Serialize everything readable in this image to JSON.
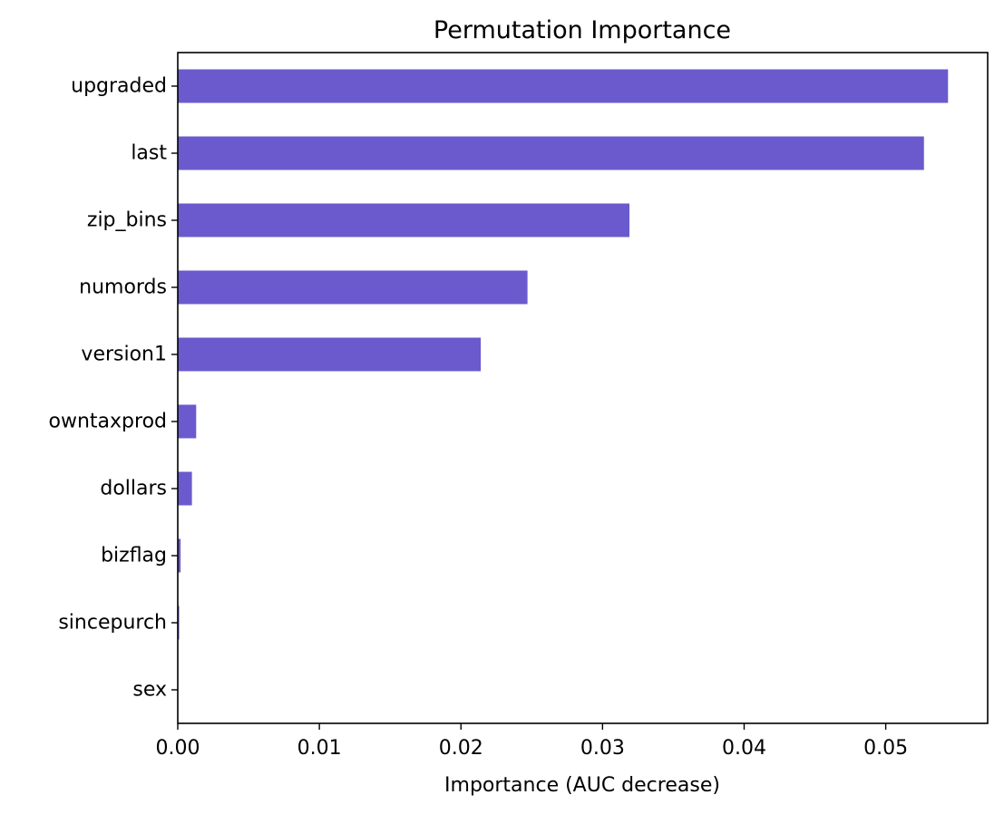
{
  "chart_data": {
    "type": "bar",
    "orientation": "horizontal",
    "title": "Permutation Importance",
    "xlabel": "Importance (AUC decrease)",
    "ylabel": "",
    "categories": [
      "upgraded",
      "last",
      "zip_bins",
      "numords",
      "version1",
      "owntaxprod",
      "dollars",
      "bizflag",
      "sincepurch",
      "sex"
    ],
    "values": [
      0.0544,
      0.0527,
      0.0319,
      0.0247,
      0.0214,
      0.0013,
      0.001,
      0.0002,
      0.0001,
      0.0
    ],
    "xlim": [
      0,
      0.0572
    ],
    "xticks": [
      0.0,
      0.01,
      0.02,
      0.03,
      0.04,
      0.05
    ],
    "xtick_labels": [
      "0.00",
      "0.01",
      "0.02",
      "0.03",
      "0.04",
      "0.05"
    ],
    "bar_color": "#6a5acd",
    "grid": false,
    "legend": false
  }
}
